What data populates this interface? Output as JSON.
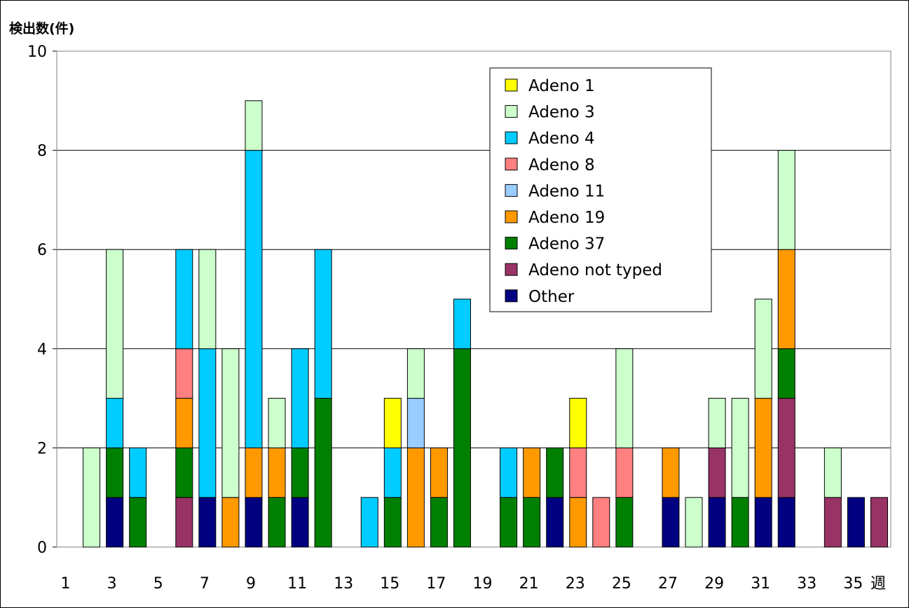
{
  "chart_data": {
    "type": "bar",
    "stacked": true,
    "ylabel": "検出数(件)",
    "xlabel": "週",
    "ylim": [
      0,
      10
    ],
    "yticks": [
      0,
      2,
      4,
      6,
      8,
      10
    ],
    "xtick_labels": [
      "1",
      "3",
      "5",
      "7",
      "9",
      "11",
      "13",
      "15",
      "17",
      "19",
      "21",
      "23",
      "25",
      "27",
      "29",
      "31",
      "33",
      "35"
    ],
    "grid": true,
    "legend_position": "top-right",
    "categories": [
      1,
      2,
      3,
      4,
      5,
      6,
      7,
      8,
      9,
      10,
      11,
      12,
      13,
      14,
      15,
      16,
      17,
      18,
      19,
      20,
      21,
      22,
      23,
      24,
      25,
      26,
      27,
      28,
      29,
      30,
      31,
      32,
      33,
      34,
      35,
      36
    ],
    "series": [
      {
        "name": "Other",
        "color": "#000080",
        "values": [
          0,
          0,
          1,
          0,
          0,
          0,
          1,
          0,
          1,
          0,
          1,
          0,
          0,
          0,
          0,
          0,
          0,
          0,
          0,
          0,
          0,
          1,
          0,
          0,
          0,
          0,
          1,
          0,
          1,
          0,
          1,
          1,
          0,
          0,
          1,
          0
        ]
      },
      {
        "name": "Adeno not typed",
        "color": "#993366",
        "values": [
          0,
          0,
          0,
          0,
          0,
          1,
          0,
          0,
          0,
          0,
          0,
          0,
          0,
          0,
          0,
          0,
          0,
          0,
          0,
          0,
          0,
          0,
          0,
          0,
          0,
          0,
          0,
          0,
          1,
          0,
          0,
          2,
          0,
          1,
          0,
          1
        ]
      },
      {
        "name": "Adeno 37",
        "color": "#008000",
        "values": [
          0,
          0,
          1,
          1,
          0,
          1,
          0,
          0,
          0,
          1,
          1,
          3,
          0,
          0,
          1,
          0,
          1,
          4,
          0,
          1,
          1,
          1,
          0,
          0,
          1,
          0,
          0,
          0,
          0,
          1,
          0,
          1,
          0,
          0,
          0,
          0
        ]
      },
      {
        "name": "Adeno 19",
        "color": "#FF9900",
        "values": [
          0,
          0,
          0,
          0,
          0,
          1,
          0,
          1,
          1,
          1,
          0,
          0,
          0,
          0,
          0,
          2,
          1,
          0,
          0,
          0,
          1,
          0,
          1,
          0,
          0,
          0,
          1,
          0,
          0,
          0,
          2,
          2,
          0,
          0,
          0,
          0
        ]
      },
      {
        "name": "Adeno 11",
        "color": "#99CCFF",
        "values": [
          0,
          0,
          0,
          0,
          0,
          0,
          0,
          0,
          0,
          0,
          0,
          0,
          0,
          0,
          0,
          1,
          0,
          0,
          0,
          0,
          0,
          0,
          0,
          0,
          0,
          0,
          0,
          0,
          0,
          0,
          0,
          0,
          0,
          0,
          0,
          0
        ]
      },
      {
        "name": "Adeno 8",
        "color": "#FF8080",
        "values": [
          0,
          0,
          0,
          0,
          0,
          1,
          0,
          0,
          0,
          0,
          0,
          0,
          0,
          0,
          0,
          0,
          0,
          0,
          0,
          0,
          0,
          0,
          1,
          1,
          1,
          0,
          0,
          0,
          0,
          0,
          0,
          0,
          0,
          0,
          0,
          0
        ]
      },
      {
        "name": "Adeno 4",
        "color": "#00CCFF",
        "values": [
          0,
          0,
          1,
          1,
          0,
          2,
          3,
          0,
          6,
          0,
          2,
          3,
          0,
          1,
          1,
          0,
          0,
          1,
          0,
          1,
          0,
          0,
          0,
          0,
          0,
          0,
          0,
          0,
          0,
          0,
          0,
          0,
          0,
          0,
          0,
          0
        ]
      },
      {
        "name": "Adeno 3",
        "color": "#CCFFCC",
        "values": [
          0,
          2,
          3,
          0,
          0,
          0,
          2,
          3,
          1,
          1,
          0,
          0,
          0,
          0,
          0,
          1,
          0,
          0,
          0,
          0,
          0,
          0,
          0,
          0,
          2,
          0,
          0,
          1,
          1,
          2,
          2,
          2,
          0,
          1,
          0,
          0
        ]
      },
      {
        "name": "Adeno 1",
        "color": "#FFFF00",
        "values": [
          0,
          0,
          0,
          0,
          0,
          0,
          0,
          0,
          0,
          0,
          0,
          0,
          0,
          0,
          1,
          0,
          0,
          0,
          0,
          0,
          0,
          0,
          1,
          0,
          0,
          0,
          0,
          0,
          0,
          0,
          0,
          0,
          0,
          0,
          0,
          0
        ]
      }
    ],
    "legend_order": [
      "Adeno 1",
      "Adeno 3",
      "Adeno 4",
      "Adeno 8",
      "Adeno 11",
      "Adeno 19",
      "Adeno 37",
      "Adeno not typed",
      "Other"
    ]
  }
}
